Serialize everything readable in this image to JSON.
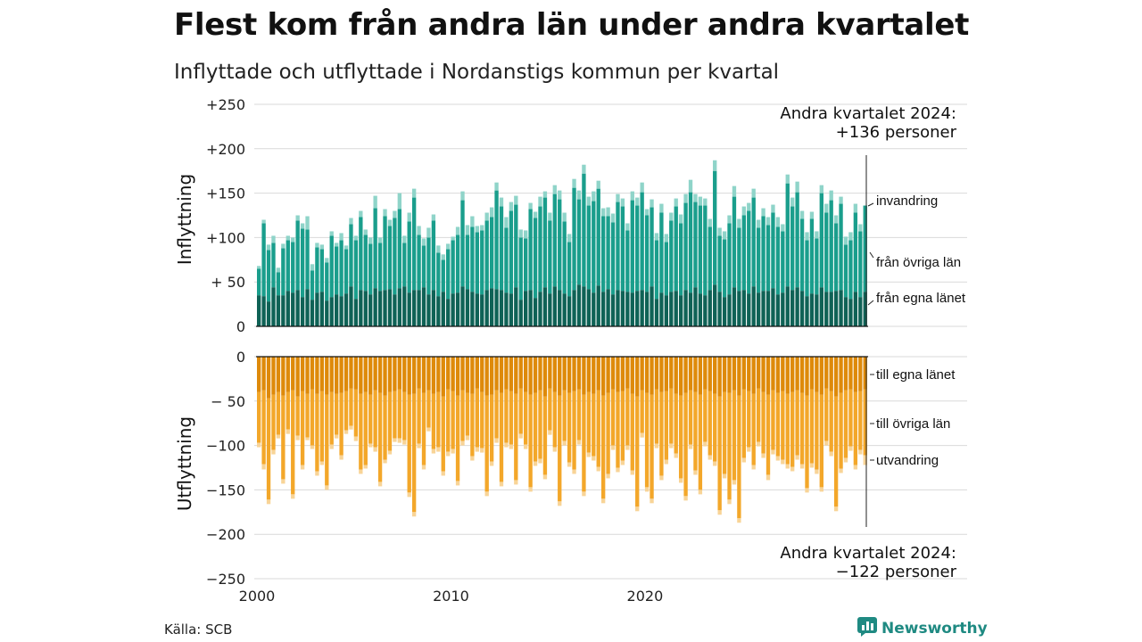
{
  "title": "Flest kom från andra län under andra kvartalet",
  "subtitle": "Inflyttade och utflyttade i Nordanstigs kommun per kvartal",
  "source": "Källa: SCB",
  "brand": "Newsworthy",
  "colors": {
    "in_own": "#0f6256",
    "in_other": "#1a9e8c",
    "in_immig": "#8fd4c9",
    "out_own": "#de8a0a",
    "out_other": "#f3a72a",
    "out_emig": "#f8d497",
    "grid": "#d9d9d9",
    "brand": "#1f8a82"
  },
  "chart_data": {
    "type": "bar",
    "stacked": true,
    "x_start": "2000 Q1",
    "x_ticks": [
      "2000",
      "2010",
      "2020"
    ],
    "panels": {
      "in": {
        "ylabel": "Inflyttning",
        "ylim": [
          0,
          250
        ],
        "yticks": [
          "0",
          "+ 50",
          "+100",
          "+150",
          "+200",
          "+250"
        ],
        "series_names": [
          "från egna länet",
          "från övriga län",
          "invandring"
        ],
        "annotation": [
          "Andra kvartalet 2024:",
          "+136 personer"
        ],
        "totals": [
          68,
          120,
          92,
          102,
          66,
          93,
          102,
          100,
          125,
          116,
          124,
          70,
          94,
          92,
          77,
          107,
          94,
          105,
          91,
          122,
          102,
          130,
          109,
          100,
          147,
          100,
          132,
          120,
          130,
          150,
          102,
          128,
          155,
          113,
          99,
          111,
          126,
          91,
          81,
          93,
          101,
          112,
          152,
          114,
          124,
          113,
          114,
          128,
          134,
          162,
          145,
          123,
          140,
          147,
          109,
          108,
          139,
          129,
          146,
          152,
          128,
          159,
          153,
          128,
          104,
          166,
          153,
          182,
          146,
          152,
          164,
          133,
          134,
          127,
          149,
          144,
          116,
          152,
          145,
          162,
          132,
          143,
          105,
          138,
          104,
          128,
          144,
          126,
          149,
          165,
          149,
          146,
          144,
          121,
          187,
          111,
          107,
          125,
          158,
          121,
          135,
          139,
          155,
          120,
          133,
          123,
          137,
          123,
          115,
          171,
          145,
          163,
          130,
          106,
          129,
          107,
          159,
          138,
          153,
          125,
          146,
          101,
          106,
          138,
          115,
          136
        ],
        "own": [
          35,
          34,
          28,
          44,
          35,
          35,
          40,
          38,
          41,
          33,
          42,
          30,
          38,
          39,
          29,
          33,
          36,
          34,
          37,
          45,
          31,
          41,
          40,
          36,
          43,
          40,
          41,
          42,
          36,
          43,
          45,
          38,
          41,
          41,
          44,
          36,
          41,
          34,
          39,
          31,
          37,
          38,
          45,
          42,
          39,
          37,
          36,
          41,
          43,
          42,
          41,
          38,
          37,
          44,
          30,
          40,
          41,
          32,
          39,
          44,
          37,
          45,
          41,
          37,
          34,
          41,
          47,
          45,
          42,
          38,
          46,
          39,
          42,
          36,
          41,
          40,
          39,
          38,
          40,
          41,
          39,
          45,
          31,
          38,
          35,
          39,
          40,
          35,
          41,
          38,
          44,
          37,
          35,
          41,
          47,
          39,
          33,
          36,
          44,
          40,
          41,
          37,
          45,
          38,
          40,
          40,
          43,
          36,
          38,
          45,
          41,
          44,
          40,
          34,
          37,
          36,
          44,
          39,
          39,
          40,
          41,
          33,
          31,
          39,
          33,
          39
        ],
        "other": [
          30,
          82,
          58,
          50,
          26,
          53,
          57,
          57,
          78,
          77,
          67,
          33,
          51,
          48,
          43,
          69,
          54,
          63,
          50,
          70,
          66,
          82,
          63,
          57,
          90,
          54,
          83,
          71,
          86,
          89,
          49,
          80,
          104,
          62,
          47,
          64,
          78,
          49,
          36,
          56,
          60,
          65,
          97,
          61,
          73,
          69,
          72,
          78,
          80,
          111,
          94,
          73,
          93,
          93,
          70,
          59,
          91,
          90,
          96,
          101,
          82,
          104,
          102,
          81,
          61,
          115,
          96,
          127,
          94,
          103,
          109,
          85,
          82,
          81,
          99,
          95,
          69,
          104,
          96,
          110,
          86,
          89,
          66,
          90,
          60,
          80,
          95,
          81,
          98,
          113,
          96,
          99,
          101,
          71,
          128,
          63,
          65,
          80,
          102,
          71,
          84,
          93,
          100,
          73,
          84,
          74,
          85,
          76,
          69,
          116,
          94,
          107,
          81,
          63,
          84,
          63,
          106,
          89,
          103,
          76,
          97,
          59,
          66,
          89,
          74,
          97
        ],
        "immig": [
          3,
          4,
          6,
          8,
          5,
          5,
          5,
          5,
          6,
          6,
          15,
          7,
          5,
          5,
          5,
          5,
          4,
          8,
          4,
          7,
          5,
          7,
          6,
          7,
          14,
          6,
          8,
          7,
          8,
          18,
          8,
          10,
          10,
          10,
          8,
          11,
          7,
          8,
          6,
          6,
          4,
          9,
          10,
          11,
          12,
          7,
          6,
          9,
          11,
          9,
          10,
          12,
          10,
          10,
          9,
          9,
          7,
          7,
          11,
          7,
          9,
          10,
          10,
          10,
          9,
          10,
          10,
          10,
          10,
          11,
          9,
          9,
          10,
          10,
          9,
          9,
          8,
          10,
          9,
          11,
          7,
          9,
          8,
          10,
          9,
          9,
          9,
          10,
          10,
          14,
          9,
          10,
          8,
          9,
          12,
          9,
          9,
          9,
          12,
          10,
          10,
          9,
          10,
          9,
          9,
          9,
          9,
          11,
          8,
          10,
          10,
          12,
          9,
          9,
          8,
          8,
          9,
          10,
          11,
          9,
          8,
          9,
          9,
          10,
          8,
          0
        ]
      },
      "out": {
        "ylabel": "Utflyttning",
        "ylim": [
          -250,
          0
        ],
        "yticks": [
          "−250",
          "−200",
          "−150",
          "−100",
          "− 50",
          "0"
        ],
        "series_names": [
          "till egna länet",
          "till övriga län",
          "utvandring"
        ],
        "annotation": [
          "Andra kvartalet 2024:",
          "−122 personer"
        ],
        "totals": [
          -102,
          -127,
          -166,
          -110,
          -92,
          -143,
          -87,
          -160,
          -94,
          -127,
          -94,
          -104,
          -134,
          -122,
          -150,
          -104,
          -92,
          -116,
          -87,
          -82,
          -95,
          -132,
          -126,
          -102,
          -107,
          -146,
          -120,
          -110,
          -96,
          -97,
          -99,
          -158,
          -180,
          -103,
          -127,
          -84,
          -109,
          -107,
          -134,
          -112,
          -109,
          -145,
          -100,
          -94,
          -117,
          -107,
          -108,
          -157,
          -123,
          -97,
          -146,
          -102,
          -104,
          -144,
          -92,
          -104,
          -152,
          -123,
          -120,
          -138,
          -88,
          -107,
          -168,
          -100,
          -124,
          -132,
          -99,
          -157,
          -113,
          -117,
          -129,
          -165,
          -137,
          -105,
          -130,
          -122,
          -105,
          -133,
          -174,
          -91,
          -152,
          -165,
          -103,
          -139,
          -121,
          -103,
          -114,
          -142,
          -162,
          -104,
          -133,
          -155,
          -101,
          -116,
          -123,
          -178,
          -137,
          -166,
          -144,
          -187,
          -119,
          -107,
          -127,
          -101,
          -114,
          -139,
          -110,
          -117,
          -121,
          -126,
          -129,
          -116,
          -126,
          -153,
          -125,
          -132,
          -152,
          -100,
          -112,
          -174,
          -131,
          -119,
          -106,
          -127,
          -110,
          -122
        ],
        "own": [
          -40,
          -38,
          -47,
          -43,
          -40,
          -44,
          -40,
          -38,
          -45,
          -39,
          -42,
          -37,
          -42,
          -39,
          -43,
          -40,
          -42,
          -41,
          -39,
          -36,
          -37,
          -42,
          -40,
          -43,
          -38,
          -41,
          -44,
          -40,
          -39,
          -37,
          -40,
          -43,
          -42,
          -36,
          -41,
          -38,
          -42,
          -40,
          -45,
          -37,
          -39,
          -44,
          -38,
          -41,
          -42,
          -36,
          -40,
          -44,
          -43,
          -38,
          -41,
          -37,
          -39,
          -42,
          -36,
          -40,
          -43,
          -41,
          -38,
          -45,
          -36,
          -40,
          -44,
          -38,
          -41,
          -39,
          -37,
          -43,
          -40,
          -42,
          -38,
          -44,
          -41,
          -37,
          -40,
          -39,
          -36,
          -42,
          -45,
          -38,
          -41,
          -43,
          -37,
          -40,
          -39,
          -36,
          -42,
          -44,
          -41,
          -38,
          -40,
          -43,
          -37,
          -39,
          -42,
          -45,
          -40,
          -41,
          -38,
          -44,
          -37,
          -39,
          -42,
          -36,
          -40,
          -43,
          -38,
          -41,
          -39,
          -42,
          -40,
          -38,
          -41,
          -44,
          -37,
          -40,
          -43,
          -36,
          -39,
          -45,
          -41,
          -38,
          -37,
          -40,
          -39,
          -37
        ],
        "other": [
          -57,
          -83,
          -114,
          -62,
          -48,
          -94,
          -42,
          -117,
          -44,
          -83,
          -49,
          -63,
          -87,
          -79,
          -102,
          -59,
          -46,
          -70,
          -44,
          -42,
          -53,
          -85,
          -82,
          -55,
          -64,
          -100,
          -72,
          -66,
          -53,
          -55,
          -54,
          -110,
          -133,
          -62,
          -81,
          -42,
          -62,
          -62,
          -84,
          -70,
          -65,
          -96,
          -57,
          -48,
          -70,
          -66,
          -63,
          -108,
          -75,
          -54,
          -100,
          -60,
          -60,
          -97,
          -51,
          -59,
          -104,
          -77,
          -77,
          -88,
          -47,
          -62,
          -119,
          -57,
          -78,
          -88,
          -57,
          -109,
          -68,
          -70,
          -86,
          -116,
          -91,
          -63,
          -85,
          -78,
          -64,
          -86,
          -124,
          -48,
          -106,
          -117,
          -61,
          -94,
          -77,
          -62,
          -67,
          -93,
          -116,
          -61,
          -88,
          -107,
          -59,
          -72,
          -76,
          -128,
          -92,
          -120,
          -101,
          -138,
          -77,
          -63,
          -80,
          -60,
          -69,
          -90,
          -67,
          -71,
          -77,
          -79,
          -84,
          -73,
          -80,
          -104,
          -83,
          -87,
          -104,
          -59,
          -68,
          -124,
          -85,
          -76,
          -64,
          -82,
          -66,
          -74
        ],
        "emig": [
          -5,
          -6,
          -5,
          -5,
          -4,
          -5,
          -5,
          -5,
          -5,
          -5,
          -3,
          -4,
          -5,
          -4,
          -5,
          -5,
          -4,
          -5,
          -4,
          -4,
          -5,
          -5,
          -4,
          -4,
          -5,
          -5,
          -4,
          -4,
          -4,
          -5,
          -5,
          -5,
          -5,
          -5,
          -5,
          -4,
          -5,
          -5,
          -5,
          -5,
          -5,
          -5,
          -5,
          -5,
          -5,
          -5,
          -5,
          -5,
          -5,
          -5,
          -5,
          -5,
          -5,
          -5,
          -5,
          -5,
          -5,
          -5,
          -5,
          -5,
          -5,
          -5,
          -5,
          -5,
          -5,
          -5,
          -5,
          -5,
          -5,
          -5,
          -5,
          -5,
          -5,
          -5,
          -5,
          -5,
          -5,
          -5,
          -5,
          -5,
          -5,
          -5,
          -5,
          -5,
          -5,
          -5,
          -5,
          -5,
          -5,
          -5,
          -5,
          -5,
          -5,
          -5,
          -5,
          -5,
          -5,
          -5,
          -5,
          -5,
          -5,
          -5,
          -5,
          -5,
          -5,
          -6,
          -5,
          -5,
          -5,
          -5,
          -5,
          -5,
          -5,
          -5,
          -5,
          -5,
          -5,
          -5,
          -5,
          -5,
          -5,
          -5,
          -5,
          -5,
          -5,
          -11
        ]
      }
    }
  }
}
